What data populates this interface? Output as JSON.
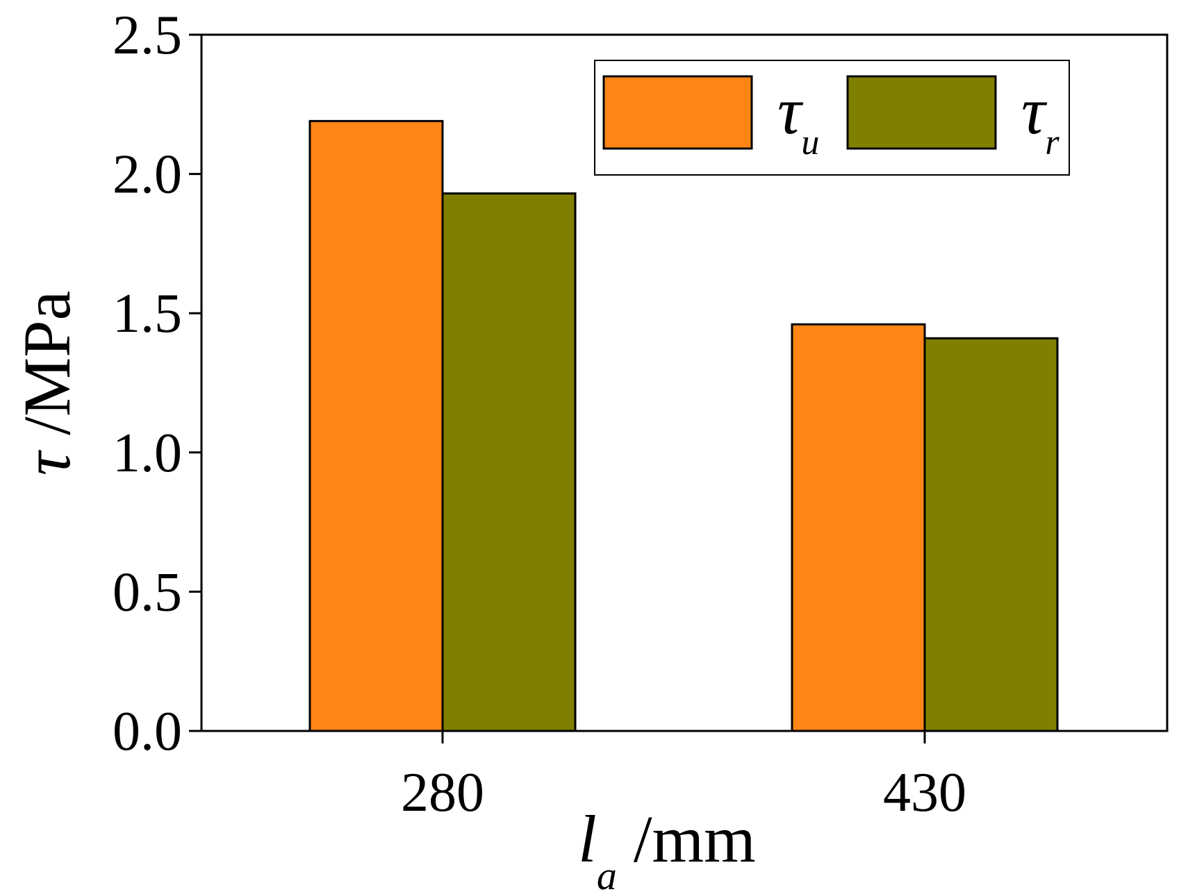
{
  "chart_data": {
    "type": "bar",
    "categories": [
      "280",
      "430"
    ],
    "series": [
      {
        "name": "τu",
        "symbol": "τ",
        "subscript": "u",
        "values": [
          2.19,
          1.46
        ],
        "color": "#FF8616"
      },
      {
        "name": "τr",
        "symbol": "τ",
        "subscript": "r",
        "values": [
          1.93,
          1.41
        ],
        "color": "#808000"
      }
    ],
    "ylim": [
      0,
      2.5
    ],
    "yticks": [
      "0.0",
      "0.5",
      "1.0",
      "1.5",
      "2.0",
      "2.5"
    ],
    "xlabel": {
      "symbol": "l",
      "subscript": "a",
      "unit": " /mm"
    },
    "ylabel": {
      "symbol": "τ",
      "unit": " /MPa"
    },
    "legend_position": "top-right",
    "grid": false
  }
}
